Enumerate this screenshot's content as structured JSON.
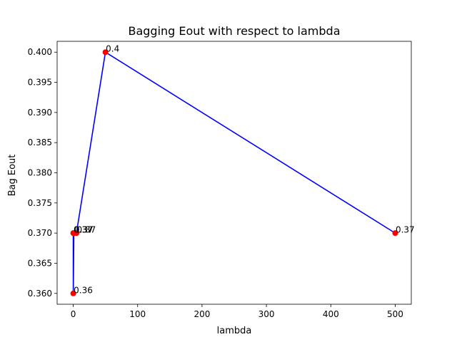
{
  "chart_data": {
    "type": "line",
    "title": "Bagging Eout with respect to lambda",
    "xlabel": "lambda",
    "ylabel": "Bag Eout",
    "x": [
      0.001,
      0.1,
      1,
      5,
      50,
      500
    ],
    "y": [
      0.37,
      0.36,
      0.37,
      0.37,
      0.4,
      0.37
    ],
    "point_labels": [
      "0.37",
      "0.36",
      "0.37",
      "0.37",
      "0.4",
      "0.37"
    ],
    "xlim": [
      -25,
      525
    ],
    "ylim": [
      0.3582,
      0.4018
    ],
    "xticks": [
      0,
      100,
      200,
      300,
      400,
      500
    ],
    "xtick_labels": [
      "0",
      "100",
      "200",
      "300",
      "400",
      "500"
    ],
    "yticks": [
      0.36,
      0.365,
      0.37,
      0.375,
      0.38,
      0.385,
      0.39,
      0.395,
      0.4
    ],
    "ytick_labels": [
      "0.360",
      "0.365",
      "0.370",
      "0.375",
      "0.380",
      "0.385",
      "0.390",
      "0.395",
      "0.400"
    ],
    "line_color": "#0000ff",
    "marker_color": "#ff0000",
    "grid": false
  }
}
